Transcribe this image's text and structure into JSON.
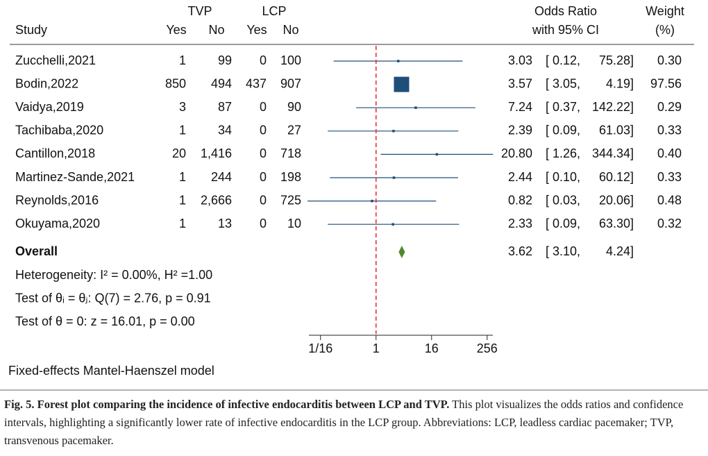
{
  "chart_data": {
    "type": "forest",
    "headers": {
      "group_a": "TVP",
      "group_b": "LCP",
      "study": "Study",
      "a_yes": "Yes",
      "a_no": "No",
      "b_yes": "Yes",
      "b_no": "No",
      "effect": "Odds Ratio",
      "effect_ci": "with 95% CI",
      "weight": "Weight",
      "weight_unit": "(%)"
    },
    "categories": [
      "Zucchelli,2021",
      "Bodin,2022",
      "Vaidya,2019",
      "Tachibaba,2020",
      "Cantillon,2018",
      "Martinez-Sande,2021",
      "Reynolds,2016",
      "Okuyama,2020"
    ],
    "counts": [
      [
        "1",
        "99",
        "0",
        "100"
      ],
      [
        "850",
        "494",
        "437",
        "907"
      ],
      [
        "3",
        "87",
        "0",
        "90"
      ],
      [
        "1",
        "34",
        "0",
        "27"
      ],
      [
        "20",
        "1,416",
        "0",
        "718"
      ],
      [
        "1",
        "244",
        "0",
        "198"
      ],
      [
        "1",
        "2,666",
        "0",
        "725"
      ],
      [
        "1",
        "13",
        "0",
        "10"
      ]
    ],
    "values": [
      3.03,
      3.57,
      7.24,
      2.39,
      20.8,
      2.44,
      0.82,
      2.33
    ],
    "value_labels": [
      "3.03",
      "3.57",
      "7.24",
      "2.39",
      "20.80",
      "2.44",
      "0.82",
      "2.33"
    ],
    "ci_low": [
      0.12,
      3.05,
      0.37,
      0.09,
      1.26,
      0.1,
      0.03,
      0.09
    ],
    "ci_low_labels": [
      "[ 0.12,",
      "[ 3.05,",
      "[ 0.37,",
      "[ 0.09,",
      "[ 1.26,",
      "[ 0.10,",
      "[ 0.03,",
      "[ 0.09,"
    ],
    "ci_high": [
      75.28,
      4.19,
      142.22,
      61.03,
      344.34,
      60.12,
      20.06,
      63.3
    ],
    "ci_high_labels": [
      "75.28]",
      "4.19]",
      "142.22]",
      "61.03]",
      "344.34]",
      "60.12]",
      "20.06]",
      "63.30]"
    ],
    "weights": [
      0.3,
      97.56,
      0.29,
      0.33,
      0.4,
      0.33,
      0.48,
      0.32
    ],
    "weight_labels": [
      "0.30",
      "97.56",
      "0.29",
      "0.33",
      "0.40",
      "0.33",
      "0.48",
      "0.32"
    ],
    "color": "#1f4e79",
    "overall": {
      "label": "Overall",
      "value": 3.62,
      "value_label": "3.62",
      "ci_low": 3.1,
      "ci_low_label": "[ 3.10,",
      "ci_high": 4.24,
      "ci_high_label": "4.24]",
      "color": "#4e8a2a"
    },
    "notes": [
      "Heterogeneity: I² = 0.00%, H² =1.00",
      "Test of θᵢ = θⱼ: Q(7) = 2.76, p = 0.91",
      "Test of θ = 0: z = 16.01, p = 0.00"
    ],
    "model": "Fixed-effects Mantel-Haenszel model",
    "xscale": "log",
    "xlim": [
      0.035,
      340
    ],
    "xticks": [
      {
        "value": 0.0625,
        "label": "1/16"
      },
      1,
      16,
      256
    ],
    "reference_line": 1,
    "reference_color": "#e8262a"
  },
  "caption": {
    "label": "Fig. 5.",
    "title": "Forest plot comparing the incidence of infective endocarditis between LCP and TVP.",
    "text": "This plot visualizes the odds ratios and confidence intervals, highlighting a significantly lower rate of infective endocarditis in the LCP group. Abbreviations: LCP, leadless cardiac pacemaker; TVP, transvenous pacemaker."
  }
}
